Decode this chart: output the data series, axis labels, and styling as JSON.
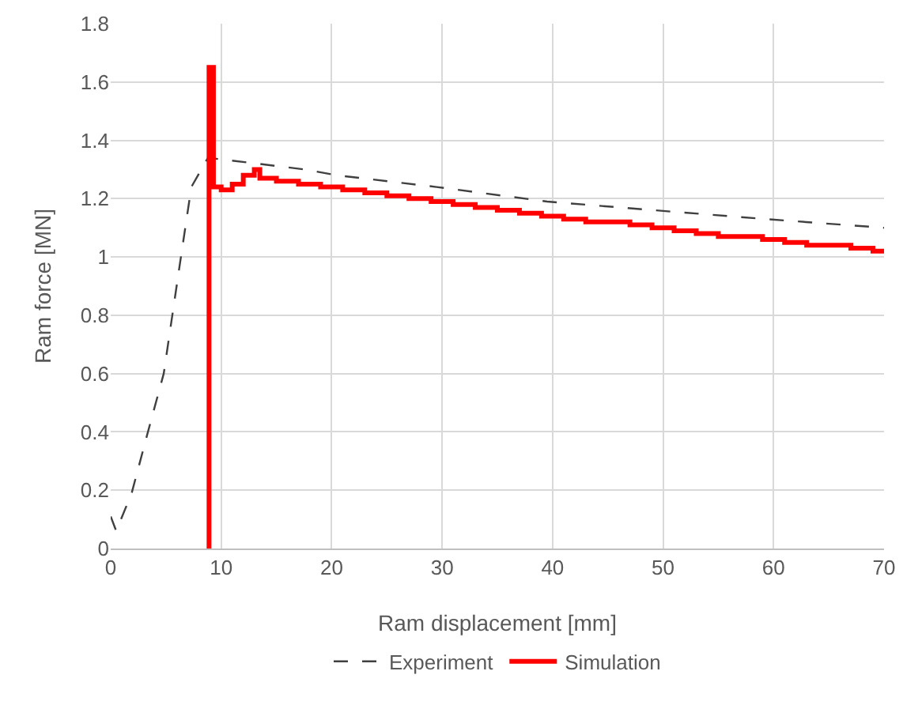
{
  "chart_data": {
    "type": "line",
    "xlabel": "Ram displacement [mm]",
    "ylabel": "Ram force [MN]",
    "xlim": [
      0,
      70
    ],
    "xticks": [
      0,
      10,
      20,
      30,
      40,
      50,
      60,
      70
    ],
    "ylim": [
      0,
      1.8
    ],
    "yticks": [
      0,
      0.2,
      0.4,
      0.6,
      0.8,
      1,
      1.2,
      1.4,
      1.6,
      1.8
    ],
    "grid": true,
    "legend": "bottom",
    "series": [
      {
        "name": "Experiment",
        "color": "#404040",
        "line_style": "dashed",
        "x": [
          0,
          0.5,
          1.9,
          3.3,
          4.8,
          6.2,
          7.3,
          8.8,
          13.3,
          17.6,
          20.5,
          29.5,
          39.5,
          49.3,
          59.3,
          70
        ],
        "values": [
          0.11,
          0.06,
          0.19,
          0.39,
          0.6,
          0.96,
          1.24,
          1.34,
          1.32,
          1.3,
          1.28,
          1.24,
          1.19,
          1.16,
          1.13,
          1.1
        ]
      },
      {
        "name": "Simulation",
        "color": "#ff0000",
        "type": "step",
        "line_style": "solid",
        "x": [
          8.9,
          8.9,
          9.3,
          10,
          11,
          12,
          13,
          13.5,
          15,
          17,
          19,
          21,
          23,
          25,
          27,
          29,
          31,
          33,
          35,
          37,
          39,
          41,
          43,
          45,
          47,
          49,
          51,
          53,
          55,
          57,
          59,
          61,
          63,
          65,
          67,
          69,
          70
        ],
        "values": [
          0,
          1.65,
          1.24,
          1.23,
          1.25,
          1.28,
          1.3,
          1.27,
          1.26,
          1.25,
          1.24,
          1.23,
          1.22,
          1.21,
          1.2,
          1.19,
          1.18,
          1.17,
          1.16,
          1.15,
          1.14,
          1.13,
          1.12,
          1.12,
          1.11,
          1.1,
          1.09,
          1.08,
          1.07,
          1.07,
          1.06,
          1.05,
          1.04,
          1.04,
          1.03,
          1.02,
          1.02
        ]
      }
    ]
  }
}
